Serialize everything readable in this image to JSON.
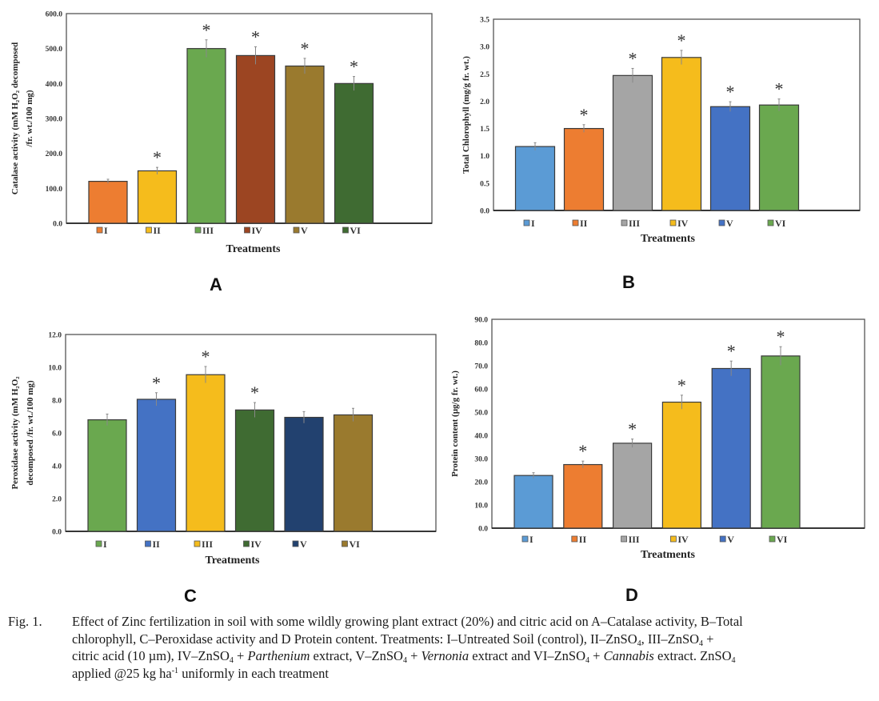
{
  "chart_data": [
    {
      "type": "bar",
      "panel_label": "A",
      "title": "",
      "xlabel": "Treatments",
      "ylabel_line1": "Catalase activity (mM H₂O₂ decomposed",
      "ylabel_line2": "/fr. wt./100 mg)",
      "ylim": [
        0,
        600
      ],
      "yticks": [
        0,
        100,
        200,
        300,
        400,
        500,
        600
      ],
      "ytick_labels": [
        "0.0",
        "100.0",
        "200.0",
        "300.0",
        "400.0",
        "500.0",
        "600.0"
      ],
      "categories": [
        "I",
        "II",
        "III",
        "IV",
        "V",
        "VI"
      ],
      "values": [
        120,
        150,
        500,
        480,
        450,
        400
      ],
      "errors": [
        6,
        10,
        25,
        25,
        22,
        20
      ],
      "significant": [
        false,
        true,
        true,
        true,
        true,
        true
      ],
      "significance_marker": "*",
      "colors": [
        "#ed7d31",
        "#f5bc1c",
        "#6aa84f",
        "#9c4522",
        "#9a7a2e",
        "#3f6b32"
      ],
      "grid": false,
      "legend_position": "bottom"
    },
    {
      "type": "bar",
      "panel_label": "B",
      "title": "",
      "xlabel": "Treatments",
      "ylabel_line1": "Total Chlorophyll (mg/g fr. wt.)",
      "ylabel_line2": "",
      "ylim": [
        0,
        3.5
      ],
      "yticks": [
        0,
        0.5,
        1.0,
        1.5,
        2.0,
        2.5,
        3.0,
        3.5
      ],
      "ytick_labels": [
        "0.0",
        "0.5",
        "1.0",
        "1.5",
        "2.0",
        "2.5",
        "3.0",
        "3.5"
      ],
      "categories": [
        "I",
        "II",
        "III",
        "IV",
        "V",
        "VI"
      ],
      "values": [
        1.17,
        1.5,
        2.47,
        2.8,
        1.9,
        1.93
      ],
      "errors": [
        0.07,
        0.07,
        0.13,
        0.13,
        0.09,
        0.11
      ],
      "significant": [
        false,
        true,
        true,
        true,
        true,
        true
      ],
      "significance_marker": "*",
      "colors": [
        "#5b9bd5",
        "#ed7d31",
        "#a5a5a5",
        "#f5bc1c",
        "#4472c4",
        "#6aa84f"
      ],
      "grid": false,
      "legend_position": "bottom"
    },
    {
      "type": "bar",
      "panel_label": "C",
      "title": "",
      "xlabel": "Treatments",
      "ylabel_line1": "Peroxidase activity (mM H₂O₂",
      "ylabel_line2": "decomposed /fr. wt./100 mg)",
      "ylim": [
        0,
        12
      ],
      "yticks": [
        0,
        2,
        4,
        6,
        8,
        10,
        12
      ],
      "ytick_labels": [
        "0.0",
        "2.0",
        "4.0",
        "6.0",
        "8.0",
        "10.0",
        "12.0"
      ],
      "categories": [
        "I",
        "II",
        "III",
        "IV",
        "V",
        "VI"
      ],
      "values": [
        6.8,
        8.05,
        9.55,
        7.4,
        6.95,
        7.1
      ],
      "errors": [
        0.35,
        0.4,
        0.5,
        0.45,
        0.35,
        0.4
      ],
      "significant": [
        false,
        true,
        true,
        true,
        false,
        false
      ],
      "significance_marker": "*",
      "colors": [
        "#6aa84f",
        "#4472c4",
        "#f5bc1c",
        "#3f6b32",
        "#22416f",
        "#9a7a2e"
      ],
      "grid": false,
      "legend_position": "bottom"
    },
    {
      "type": "bar",
      "panel_label": "D",
      "title": "",
      "xlabel": "Treatments",
      "ylabel_line1": "Protein content (µg/g fr. wt.)",
      "ylabel_line2": "",
      "ylim": [
        0,
        90
      ],
      "yticks": [
        0,
        10,
        20,
        30,
        40,
        50,
        60,
        70,
        80,
        90
      ],
      "ytick_labels": [
        "0.0",
        "10.0",
        "20.0",
        "30.0",
        "40.0",
        "50.0",
        "60.0",
        "70.0",
        "80.0",
        "90.0"
      ],
      "categories": [
        "I",
        "II",
        "III",
        "IV",
        "V",
        "VI"
      ],
      "values": [
        22.7,
        27.4,
        36.6,
        54.3,
        68.8,
        74.2
      ],
      "errors": [
        1.2,
        1.5,
        1.8,
        3.0,
        3.2,
        4.0
      ],
      "significant": [
        false,
        true,
        true,
        true,
        true,
        true
      ],
      "significance_marker": "*",
      "colors": [
        "#5b9bd5",
        "#ed7d31",
        "#a5a5a5",
        "#f5bc1c",
        "#4472c4",
        "#6aa84f"
      ],
      "grid": false,
      "legend_position": "bottom"
    }
  ],
  "caption": {
    "lead": "Fig. 1.",
    "line1": "Effect of Zinc fertilization in soil with some wildly growing plant extract (20%) and citric acid on A–Catalase activity, B–Total",
    "line2_a": "chlorophyll, C–Peroxidase activity and D Protein content. Treatments: I–Untreated Soil (control), II–ZnSO",
    "line2_b": ", III–ZnSO",
    "line2_c": " +",
    "line3_a": "citric acid (10 µm), IV–ZnSO",
    "line3_b": " + ",
    "line3_italic1": "Parthenium",
    "line3_c": " extract, V–ZnSO",
    "line3_d": " + ",
    "line3_italic2": "Vernonia",
    "line3_e": " extract and VI–ZnSO",
    "line3_f": " + ",
    "line3_italic3": "Cannabis",
    "line3_g": " extract. ZnSO",
    "line4_a": "applied @25 kg ha",
    "line4_sup": "-1",
    "line4_b": " uniformly in each treatment",
    "subscript_4": "4"
  }
}
